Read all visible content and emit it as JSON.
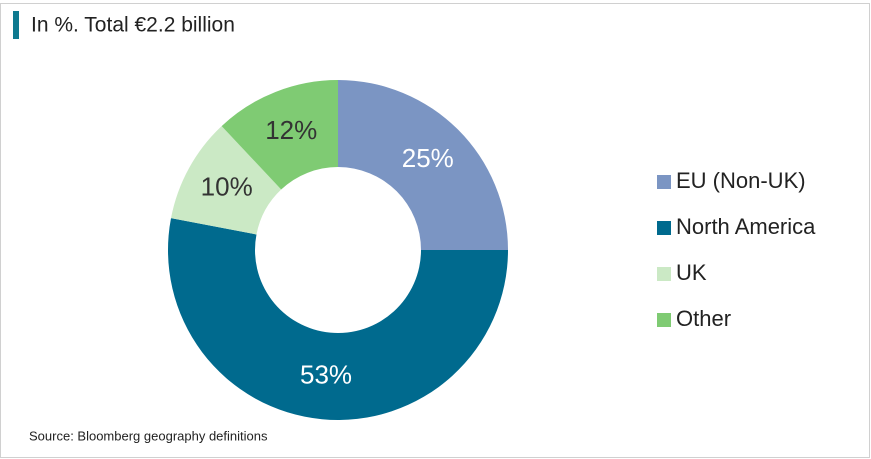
{
  "chart_data": {
    "type": "donut",
    "title": "In %. Total €2.2 billion",
    "categories": [
      "EU (Non-UK)",
      "North America",
      "UK",
      "Other"
    ],
    "values": [
      25,
      53,
      10,
      12
    ],
    "value_labels": [
      "25%",
      "53%",
      "10%",
      "12%"
    ],
    "colors": [
      "#7b95c3",
      "#006a8e",
      "#cbe9c5",
      "#7fcb73"
    ],
    "legend": "right",
    "source": "Source: Bloomberg geography definitions"
  }
}
